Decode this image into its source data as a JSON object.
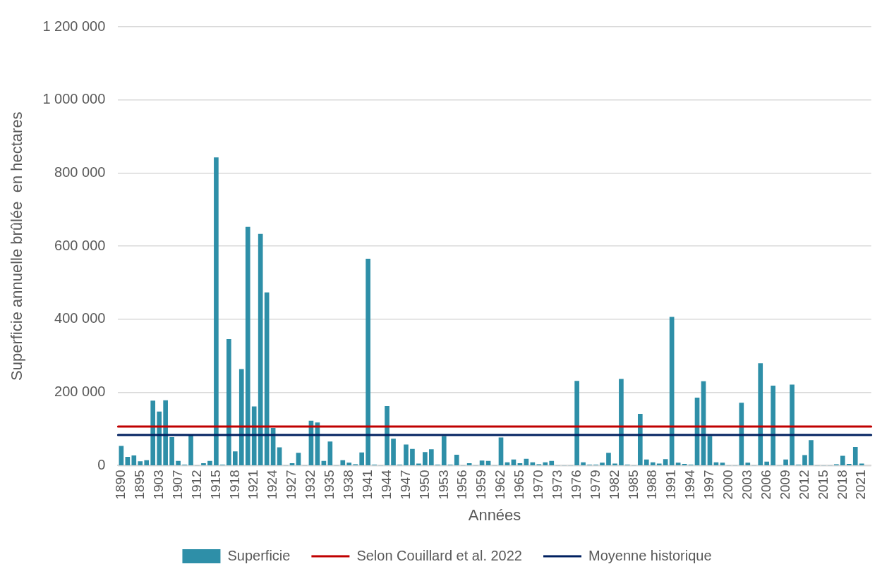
{
  "chart_data": {
    "type": "bar",
    "xlabel": "Années",
    "ylabel": "Superficie annuelle brûlée  en hectares",
    "categories": [
      "1890",
      null,
      null,
      "1895",
      null,
      null,
      "1903",
      null,
      null,
      "1907",
      null,
      null,
      "1912",
      null,
      null,
      "1915",
      null,
      null,
      "1918",
      null,
      null,
      "1921",
      null,
      null,
      "1924",
      null,
      null,
      "1927",
      null,
      null,
      "1932",
      null,
      null,
      "1935",
      null,
      null,
      "1938",
      null,
      null,
      "1941",
      null,
      null,
      "1944",
      null,
      null,
      "1947",
      null,
      null,
      "1950",
      null,
      null,
      "1953",
      null,
      null,
      "1956",
      null,
      null,
      "1959",
      null,
      null,
      "1962",
      null,
      null,
      "1965",
      null,
      null,
      "1970",
      null,
      null,
      "1973",
      null,
      null,
      "1976",
      null,
      null,
      "1979",
      null,
      null,
      "1982",
      null,
      null,
      "1985",
      null,
      null,
      "1988",
      null,
      null,
      "1991",
      null,
      null,
      "1994",
      null,
      null,
      "1997",
      null,
      null,
      "2000",
      null,
      null,
      "2003",
      null,
      null,
      "2006",
      null,
      null,
      "2009",
      null,
      null,
      "2012",
      null,
      null,
      "2015",
      null,
      null,
      "2018",
      null,
      null,
      "2021",
      null
    ],
    "series": [
      {
        "name": "Superficie",
        "color": "#2e8fa8",
        "values": [
          53000,
          23000,
          27000,
          11000,
          14000,
          177000,
          147000,
          178000,
          77000,
          12000,
          2000,
          83000,
          0,
          6000,
          12000,
          842000,
          2000,
          345000,
          38000,
          263000,
          652000,
          161000,
          633000,
          473000,
          102000,
          49000,
          0,
          6000,
          34000,
          0,
          122000,
          117000,
          12000,
          65000,
          0,
          14000,
          7000,
          3000,
          35000,
          565000,
          2000,
          0,
          162000,
          73000,
          2000,
          57000,
          45000,
          5000,
          36000,
          44000,
          2000,
          80000,
          2000,
          29000,
          0,
          6000,
          0,
          13000,
          12000,
          0,
          76000,
          8000,
          16000,
          6000,
          18000,
          8000,
          3000,
          8000,
          12000,
          0,
          0,
          0,
          231000,
          8000,
          2000,
          2000,
          7000,
          34000,
          5000,
          236000,
          2000,
          0,
          141000,
          16000,
          8000,
          5000,
          17000,
          406000,
          7000,
          4000,
          2000,
          185000,
          230000,
          80000,
          8000,
          7000,
          0,
          0,
          171000,
          7000,
          0,
          279000,
          10000,
          218000,
          0,
          16000,
          221000,
          2000,
          28000,
          69000,
          0,
          0,
          0,
          3000,
          26000,
          4000,
          50000,
          5000,
          null
        ]
      }
    ],
    "ref_lines": [
      {
        "axis": "y",
        "value": 106800,
        "label": "Selon Couillard et al. 2022",
        "color": "#c00000"
      },
      {
        "axis": "y",
        "value": 83500,
        "label": "Moyenne historique",
        "color": "#002060"
      }
    ],
    "ylim": [
      0,
      1200000
    ],
    "yticks": [
      {
        "value": 0,
        "label": "0"
      },
      {
        "value": 200000,
        "label": "200 000"
      },
      {
        "value": 400000,
        "label": "400 000"
      },
      {
        "value": 600000,
        "label": "600 000"
      },
      {
        "value": 800000,
        "label": "800 000"
      },
      {
        "value": 1000000,
        "label": "1 000 000"
      },
      {
        "value": 1200000,
        "label": "1 200 000"
      }
    ],
    "grid": "y",
    "legend": "bottom"
  }
}
